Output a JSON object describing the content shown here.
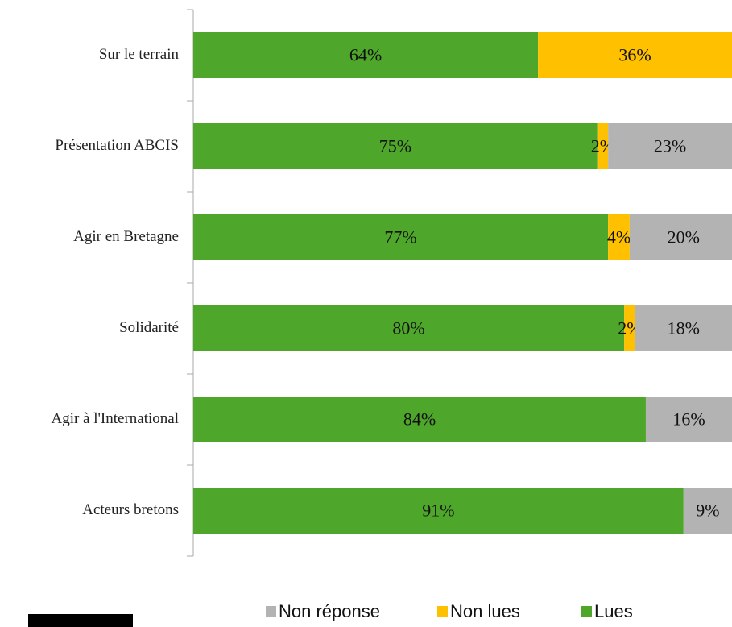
{
  "chart_data": {
    "type": "stacked-bar-horizontal",
    "categories": [
      "Sur le terrain",
      "Présentation ABCIS",
      "Agir en Bretagne",
      "Solidarité",
      "Agir à l'International",
      "Acteurs bretons"
    ],
    "series": [
      {
        "name": "Non réponse",
        "color": "#b3b3b3",
        "values": [
          null,
          23,
          20,
          18,
          16,
          9
        ],
        "value_labels": [
          null,
          "23%",
          "20%",
          "18%",
          "16%",
          "9%"
        ]
      },
      {
        "name": "Non lues",
        "color": "#ffc000",
        "values": [
          36,
          2,
          4,
          2,
          null,
          null
        ],
        "value_labels": [
          "36%",
          "2%",
          "4%",
          "2%",
          null,
          null
        ]
      },
      {
        "name": "Lues",
        "color": "#4ea72a",
        "values": [
          64,
          75,
          77,
          80,
          84,
          91
        ],
        "value_labels": [
          "64%",
          "75%",
          "77%",
          "80%",
          "84%",
          "91%"
        ]
      }
    ],
    "xlim": [
      0,
      100
    ]
  }
}
